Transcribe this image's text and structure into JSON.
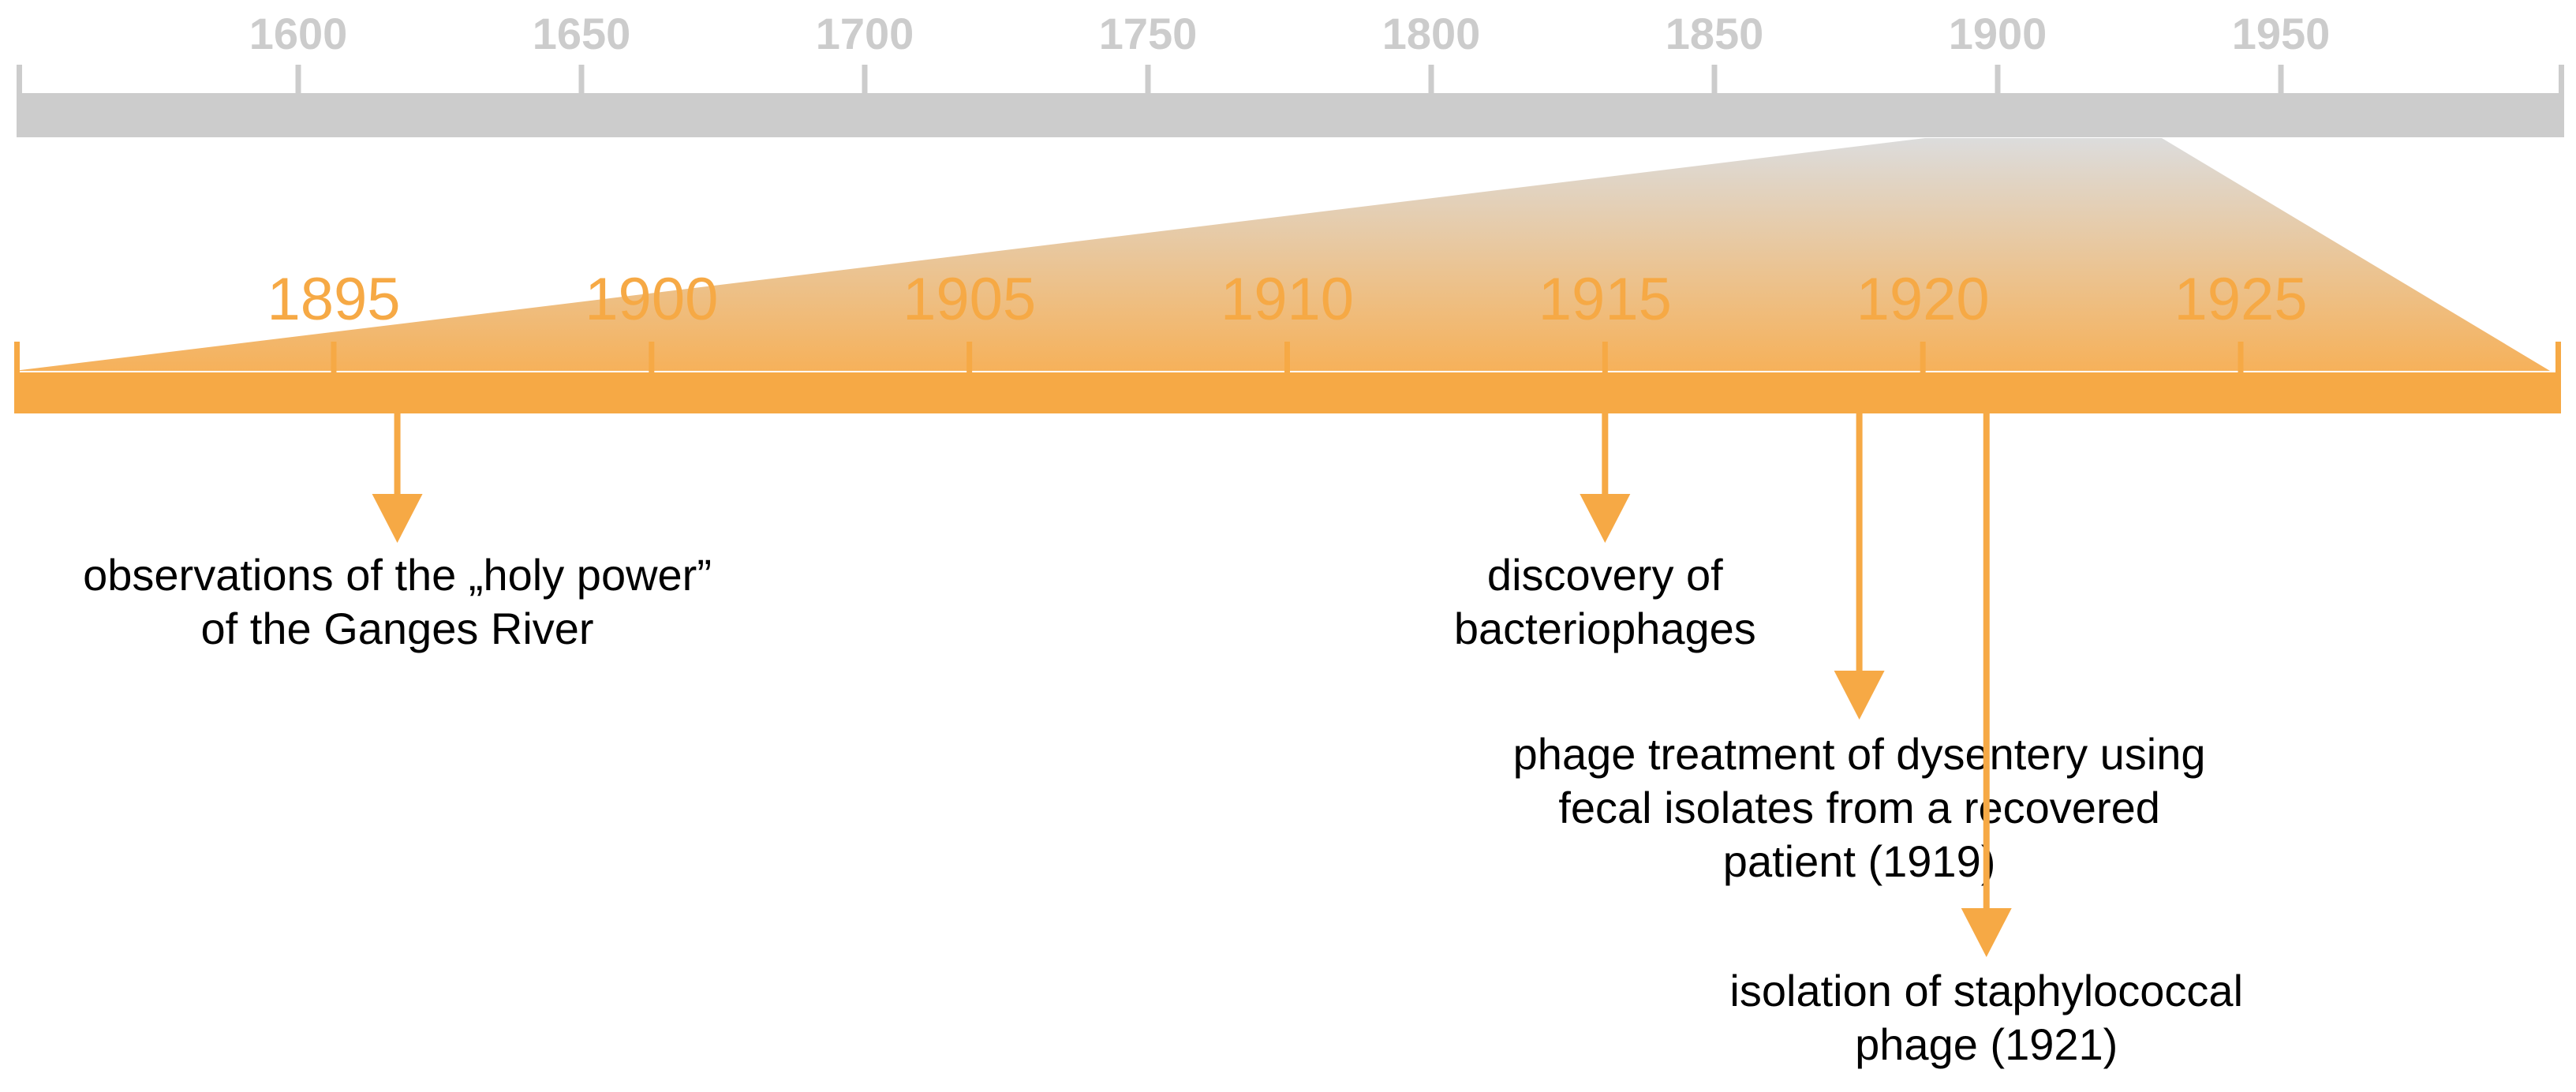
{
  "colors": {
    "overview_axis": "#cccccc",
    "detail_axis": "#f6a945",
    "event_arrow": "#f6a945",
    "event_text": "#000000"
  },
  "overview_timeline": {
    "tick_labels": [
      "1600",
      "1650",
      "1700",
      "1750",
      "1800",
      "1850",
      "1900",
      "1950"
    ]
  },
  "detail_timeline": {
    "tick_labels": [
      "1895",
      "1900",
      "1905",
      "1910",
      "1915",
      "1920",
      "1925"
    ]
  },
  "events": [
    {
      "year": 1896,
      "lines": [
        "observations of the „holy power”",
        "of the Ganges River"
      ]
    },
    {
      "year": 1915,
      "lines": [
        "discovery of",
        "bacteriophages"
      ]
    },
    {
      "year": 1919,
      "lines": [
        "phage treatment of dysentery using",
        "fecal isolates from a recovered",
        "patient (1919)"
      ]
    },
    {
      "year": 1921,
      "lines": [
        "isolation of staphylococcal",
        "phage (1921)"
      ]
    }
  ]
}
